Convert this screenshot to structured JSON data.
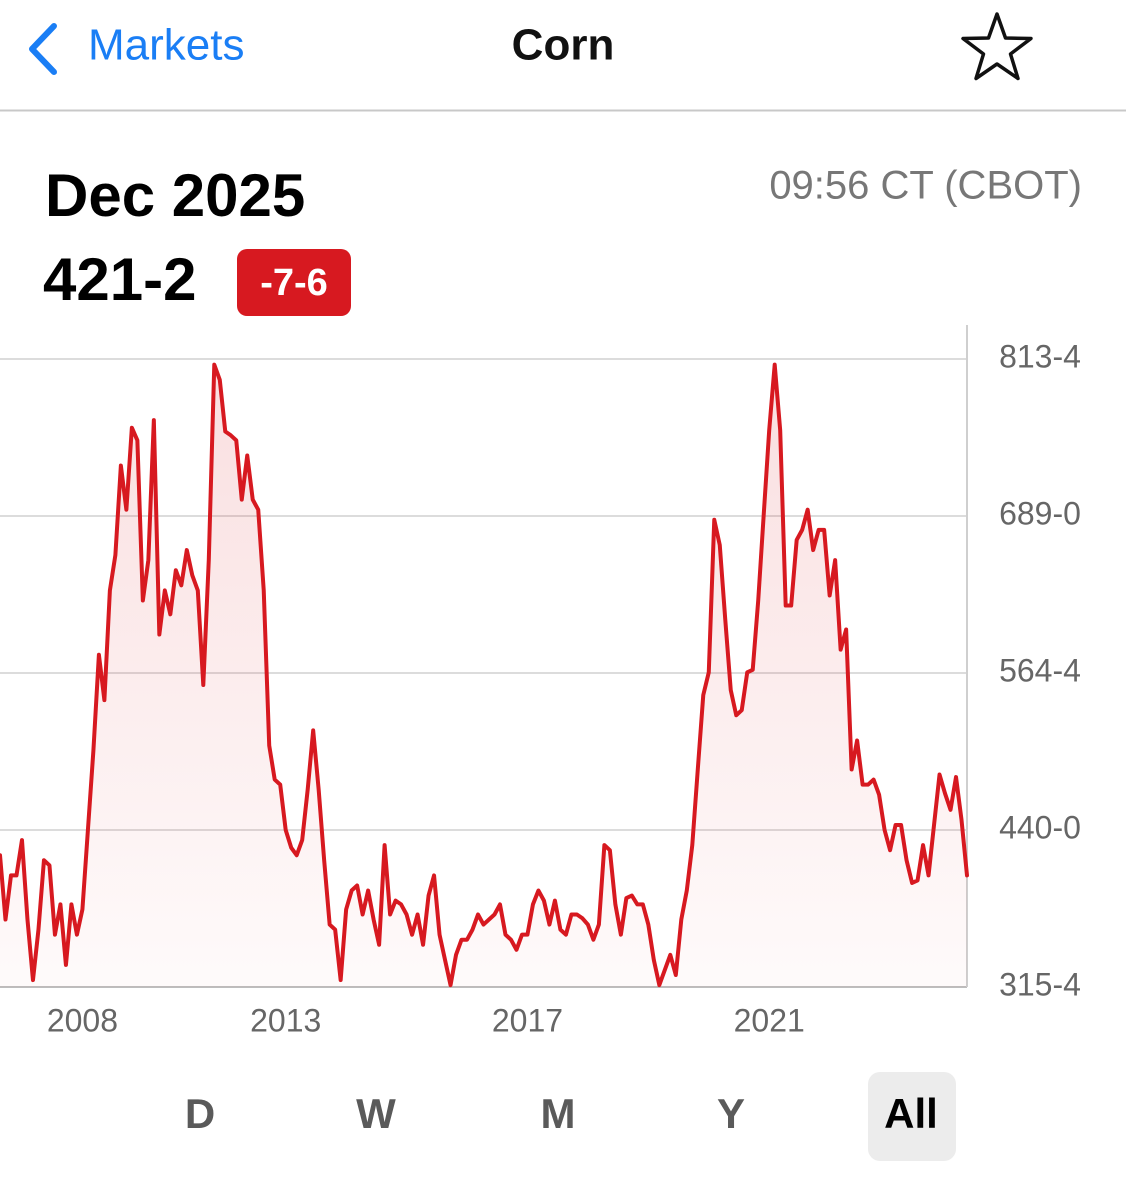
{
  "nav": {
    "back": "Markets",
    "title": "Corn"
  },
  "header": {
    "contract": "Dec 2025",
    "price": "421-2",
    "change": "-7-6",
    "time": "09:56 CT (CBOT)"
  },
  "chart_data": {
    "type": "line",
    "color": "#d71920",
    "grid": true,
    "axis_side": "right",
    "ylim": [
      315.5,
      813.5
    ],
    "yticks": [
      {
        "value": 813.5,
        "label": "813-4"
      },
      {
        "value": 689.0,
        "label": "689-0"
      },
      {
        "value": 564.5,
        "label": "564-4"
      },
      {
        "value": 440.0,
        "label": "440-0"
      },
      {
        "value": 315.5,
        "label": "315-4"
      }
    ],
    "categories": [
      null,
      null,
      null,
      null,
      null,
      null,
      null,
      null,
      null,
      null,
      null,
      null,
      null,
      null,
      null,
      "2008",
      null,
      null,
      null,
      null,
      null,
      null,
      null,
      null,
      null,
      null,
      null,
      null,
      null,
      null,
      null,
      null,
      null,
      null,
      null,
      null,
      null,
      null,
      null,
      null,
      null,
      null,
      null,
      null,
      null,
      null,
      null,
      null,
      null,
      null,
      null,
      null,
      "2013",
      null,
      null,
      null,
      null,
      null,
      null,
      null,
      null,
      null,
      null,
      null,
      null,
      null,
      null,
      null,
      null,
      null,
      null,
      null,
      null,
      null,
      null,
      null,
      null,
      null,
      null,
      null,
      null,
      null,
      null,
      null,
      null,
      null,
      null,
      null,
      null,
      null,
      null,
      null,
      null,
      null,
      null,
      null,
      "2017",
      null,
      null,
      null,
      null,
      null,
      null,
      null,
      null,
      null,
      null,
      null,
      null,
      null,
      null,
      null,
      null,
      null,
      null,
      null,
      null,
      null,
      null,
      null,
      null,
      null,
      null,
      null,
      null,
      null,
      null,
      null,
      null,
      null,
      null,
      null,
      null,
      null,
      null,
      null,
      null,
      null,
      null,
      null,
      "2021",
      null,
      null,
      null,
      null,
      null,
      null,
      null,
      null,
      null,
      null,
      null,
      null,
      null,
      null,
      null,
      null,
      null,
      null,
      null,
      null,
      null,
      null,
      null,
      null,
      null,
      null,
      null,
      null,
      null,
      null,
      null,
      null,
      null,
      null,
      null,
      null
    ],
    "values": [
      420,
      369,
      404,
      404,
      432,
      369,
      321,
      361,
      416,
      412,
      357,
      381,
      333,
      381,
      357,
      377,
      440,
      503,
      579,
      543,
      630,
      658,
      729,
      694,
      759,
      749,
      622,
      654,
      765,
      595,
      630,
      611,
      646,
      634,
      662,
      642,
      630,
      555,
      654,
      809,
      797,
      756,
      753,
      749,
      702,
      737,
      702,
      694,
      630,
      507,
      480,
      476,
      440,
      426,
      420,
      432,
      472,
      519,
      472,
      416,
      365,
      361,
      321,
      377,
      392,
      396,
      373,
      392,
      369,
      349,
      428,
      373,
      384,
      381,
      373,
      357,
      373,
      349,
      388,
      404,
      357,
      337,
      317,
      341,
      353,
      353,
      361,
      373,
      365,
      369,
      373,
      381,
      357,
      353,
      345,
      357,
      357,
      381,
      392,
      384,
      365,
      384,
      361,
      357,
      373,
      373,
      370,
      365,
      353,
      365,
      428,
      424,
      381,
      357,
      386,
      388,
      381,
      381,
      365,
      337,
      317,
      329,
      341,
      325,
      369,
      392,
      428,
      488,
      547,
      565,
      686,
      666,
      607,
      551,
      531,
      535,
      565,
      567,
      622,
      690,
      757,
      809,
      757,
      618,
      618,
      670,
      678,
      694,
      662,
      678,
      678,
      626,
      654,
      583,
      599,
      488,
      511,
      476,
      476,
      480,
      468,
      440,
      424,
      444,
      444,
      416,
      398,
      400,
      428,
      404,
      444,
      484,
      469,
      456,
      482,
      448,
      404
    ]
  },
  "ranges": {
    "options": [
      "D",
      "W",
      "M",
      "Y",
      "All"
    ],
    "selected": 4
  }
}
